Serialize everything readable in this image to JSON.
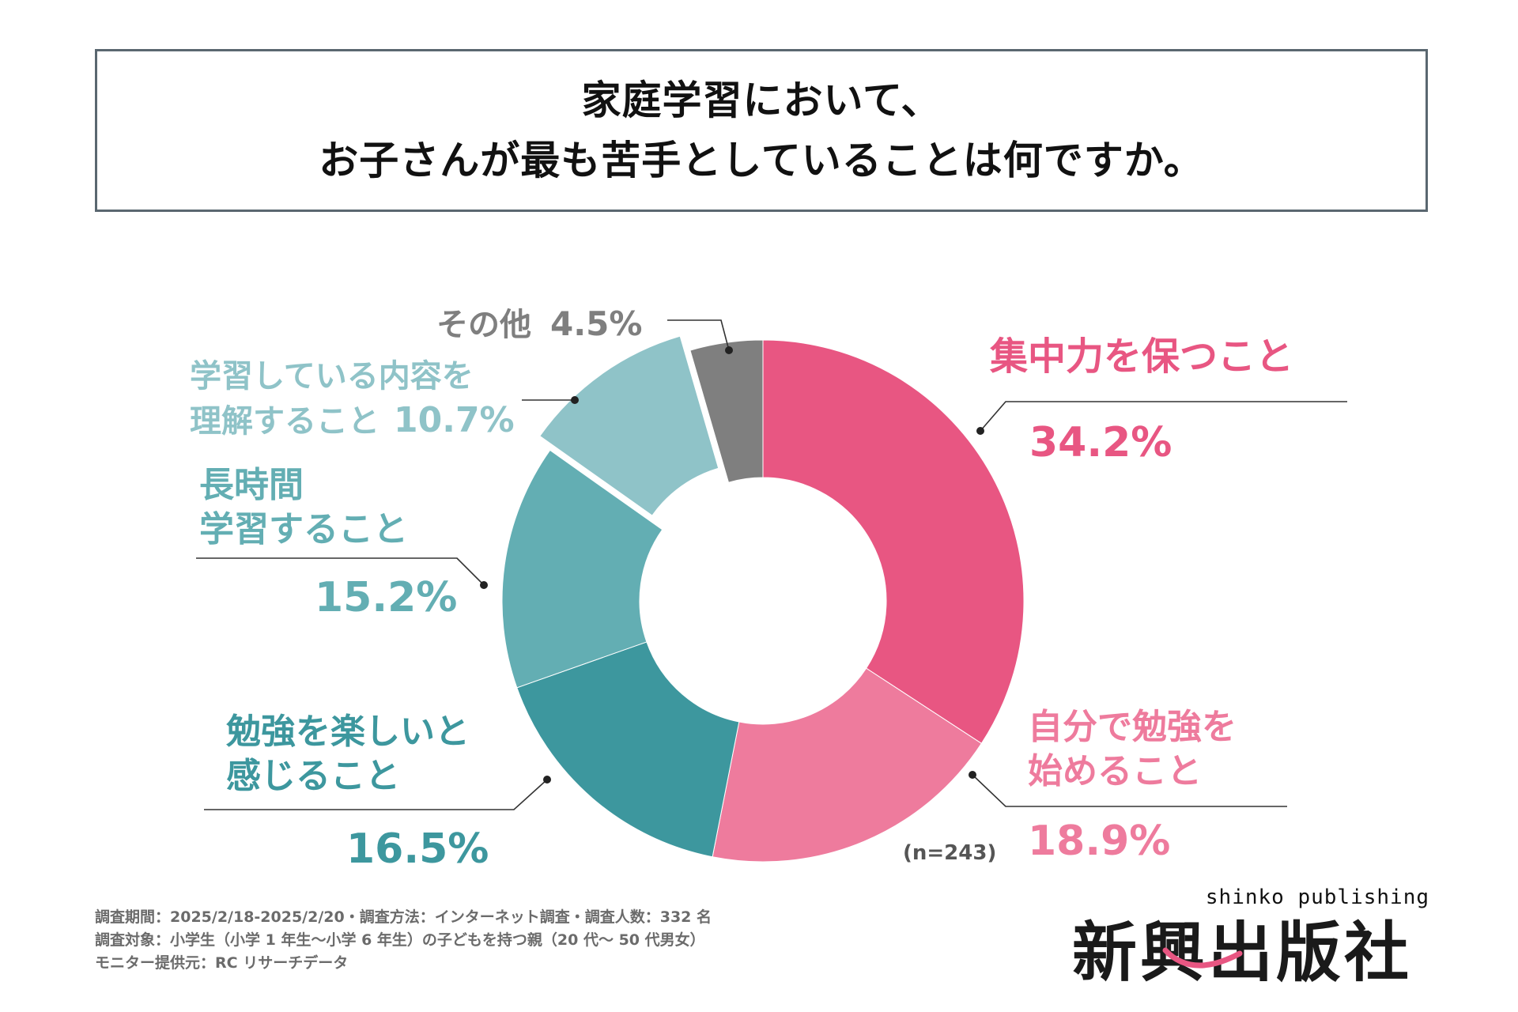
{
  "title": {
    "line1": "家庭学習において、",
    "line2": "お子さんが最も苦手としていることは何ですか。"
  },
  "chart_data": {
    "type": "pie",
    "variant": "donut",
    "categories": [
      "集中力を保つこと",
      "自分で勉強を始めること",
      "勉強を楽しいと感じること",
      "長時間学習すること",
      "学習している内容を理解すること",
      "その他"
    ],
    "values": [
      34.2,
      18.9,
      16.5,
      15.2,
      10.7,
      4.5
    ],
    "colors": [
      "#e85682",
      "#ee7b9d",
      "#3d979e",
      "#63aeb3",
      "#8fc3c8",
      "#7f7f7f"
    ],
    "unit": "%",
    "sample_size": "(n=243)"
  },
  "labels": [
    {
      "name_lines": [
        "集中力を保つこと"
      ],
      "value": "34.2%",
      "color": "#e85682"
    },
    {
      "name_lines": [
        "自分で勉強を",
        "始めること"
      ],
      "value": "18.9%",
      "color": "#ee7b9d"
    },
    {
      "name_lines": [
        "勉強を楽しいと",
        "感じること"
      ],
      "value": "16.5%",
      "color": "#3d979e"
    },
    {
      "name_lines": [
        "長時間",
        "学習すること"
      ],
      "value": "15.2%",
      "color": "#63aeb3"
    },
    {
      "name_lines": [
        "学習している内容を",
        "理解すること"
      ],
      "value": "10.7%",
      "color": "#8fc3c8"
    },
    {
      "name_lines": [
        "その他"
      ],
      "value": "4.5%",
      "color": "#7f7f7f"
    }
  ],
  "footer": {
    "line1": "調査期間：2025/2/18-2025/2/20・調査方法：インターネット調査・調査人数：332 名",
    "line2": "調査対象：小学生（小学 1 年生〜小学 6 年生）の子どもを持つ親（20 代〜 50 代男女）",
    "line3": "モニター提供元：RC リサーチデータ"
  },
  "logo": {
    "small": "shinko publishing",
    "big": "新興出版社"
  }
}
